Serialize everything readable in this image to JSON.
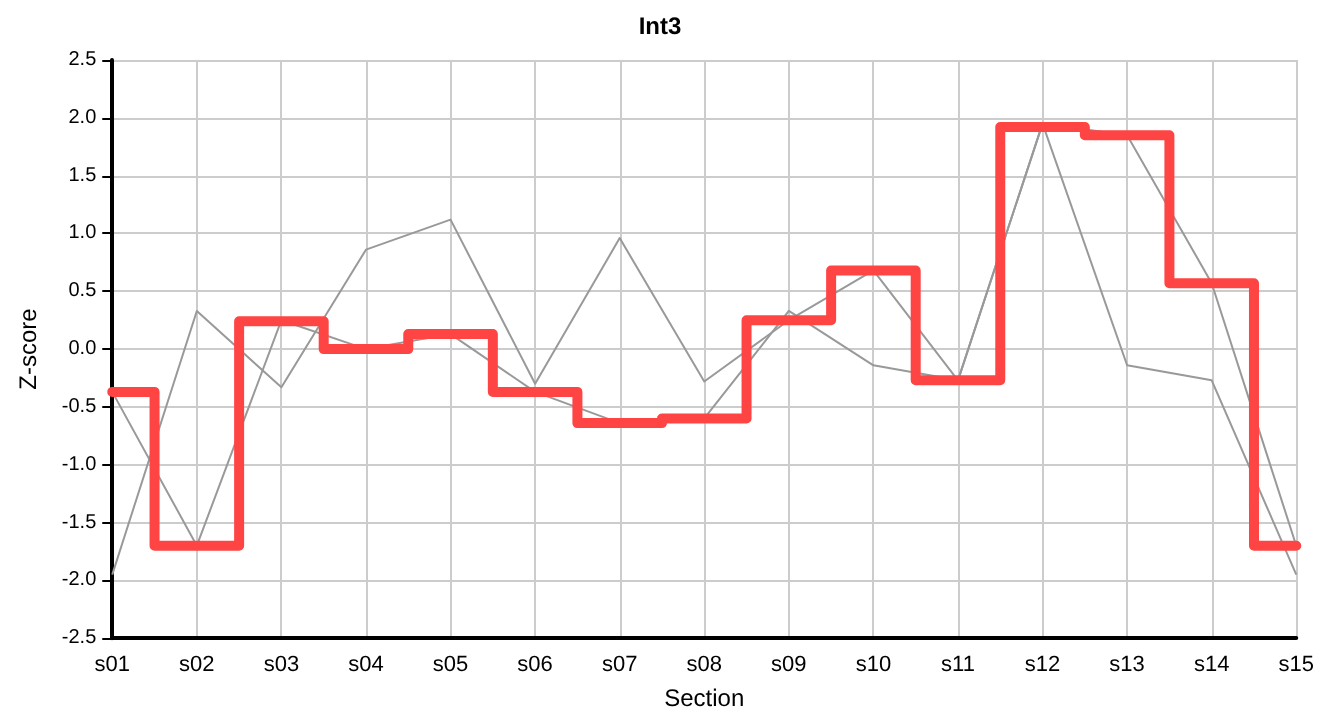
{
  "chart_data": {
    "type": "line",
    "title": "Int3",
    "xlabel": "Section",
    "ylabel": "Z-score",
    "categories": [
      "s01",
      "s02",
      "s03",
      "s04",
      "s05",
      "s06",
      "s07",
      "s08",
      "s09",
      "s10",
      "s11",
      "s12",
      "s13",
      "s14",
      "s15"
    ],
    "series": [
      {
        "color": "#999999",
        "values": [
          -1.95,
          0.33,
          -0.33,
          0.86,
          1.12,
          -0.3,
          0.96,
          -0.28,
          0.25,
          0.68,
          -0.27,
          1.95,
          1.85,
          0.57,
          -1.7
        ]
      },
      {
        "color": "#999999",
        "values": [
          -0.37,
          -1.7,
          0.25,
          0.0,
          0.13,
          -0.37,
          -0.64,
          -0.6,
          0.33,
          -0.14,
          -0.27,
          1.95,
          -0.14,
          -0.27,
          -1.95
        ]
      },
      {
        "type": "step",
        "color": "#ff4444",
        "values": [
          -0.37,
          -1.7,
          0.24,
          0.0,
          0.13,
          -0.37,
          -0.64,
          -0.6,
          0.25,
          0.68,
          -0.27,
          1.92,
          1.85,
          0.57,
          -1.7
        ]
      }
    ],
    "ylim": [
      -2.5,
      2.5
    ],
    "yticks": [
      {
        "value": -2.5,
        "label": "-2.5"
      },
      {
        "value": -2,
        "label": "-2.0"
      },
      {
        "value": -1.5,
        "label": "-1.5"
      },
      {
        "value": -1,
        "label": "-1.0"
      },
      {
        "value": -0.5,
        "label": "-0.5"
      },
      {
        "value": 0,
        "label": "0.0"
      },
      {
        "value": 0.5,
        "label": "0.5"
      },
      {
        "value": 1,
        "label": "1.0"
      },
      {
        "value": 1.5,
        "label": "1.5"
      },
      {
        "value": 2,
        "label": "2.0"
      },
      {
        "value": 2.5,
        "label": "2.5"
      }
    ],
    "grid": true,
    "marker": "none",
    "line_style": "solid"
  }
}
